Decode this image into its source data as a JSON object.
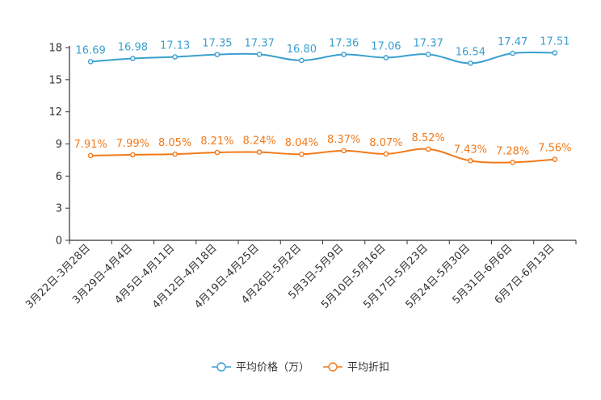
{
  "chart_data": {
    "type": "line",
    "title": "",
    "xlabel": "",
    "ylabel": "",
    "ylim": [
      0,
      18
    ],
    "yticks": [
      0,
      3,
      6,
      9,
      12,
      15,
      18
    ],
    "categories": [
      "3月22日-3月28日",
      "3月29日-4月4日",
      "4月5日-4月11日",
      "4月12日-4月18日",
      "4月19日-4月25日",
      "4月26日-5月2日",
      "5月3日-5月9日",
      "5月10日-5月16日",
      "5月17日-5月23日",
      "5月24日-5月30日",
      "5月31日-6月6日",
      "6月7日-6月13日"
    ],
    "series": [
      {
        "name": "平均价格（万）",
        "color": "#3a9fcf",
        "values": [
          16.69,
          16.98,
          17.13,
          17.35,
          17.37,
          16.8,
          17.36,
          17.06,
          17.37,
          16.54,
          17.47,
          17.51
        ],
        "labels": [
          "16.69",
          "16.98",
          "17.13",
          "17.35",
          "17.37",
          "16.80",
          "17.36",
          "17.06",
          "17.37",
          "16.54",
          "17.47",
          "17.51"
        ]
      },
      {
        "name": "平均折扣",
        "color": "#f27a1a",
        "values": [
          7.91,
          7.99,
          8.05,
          8.21,
          8.24,
          8.04,
          8.37,
          8.07,
          8.52,
          7.43,
          7.28,
          7.56
        ],
        "labels": [
          "7.91%",
          "7.99%",
          "8.05%",
          "8.21%",
          "8.24%",
          "8.04%",
          "8.37%",
          "8.07%",
          "8.52%",
          "7.43%",
          "7.28%",
          "7.56%"
        ]
      }
    ],
    "legend_position": "bottom-center"
  }
}
